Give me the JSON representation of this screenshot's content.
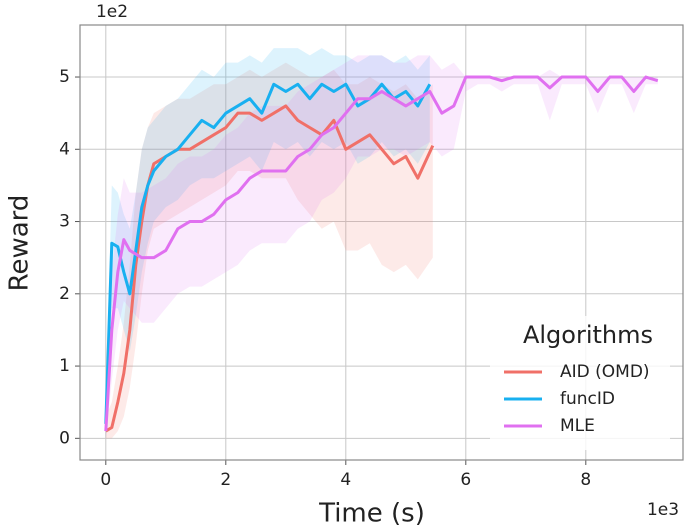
{
  "chart_data": {
    "type": "line",
    "x_label": "Time (s)",
    "y_label": "Reward",
    "x_offset_label": "1e3",
    "y_offset_label": "1e2",
    "legend_title": "Algorithms",
    "legend_position": "lower right",
    "grid": true,
    "xlim": [
      -0.43,
      9.62
    ],
    "xticks": [
      0,
      2,
      4,
      6,
      8
    ],
    "ylim": [
      -0.3,
      5.72
    ],
    "yticks": [
      0,
      1,
      2,
      3,
      4,
      5
    ],
    "series": [
      {
        "name": "AID (OMD)",
        "color": "#f07068",
        "x": [
          0,
          0.1,
          0.2,
          0.3,
          0.4,
          0.5,
          0.6,
          0.7,
          0.8,
          1.0,
          1.2,
          1.4,
          1.6,
          1.8,
          2.0,
          2.2,
          2.4,
          2.6,
          2.8,
          3.0,
          3.2,
          3.4,
          3.6,
          3.8,
          4.0,
          4.2,
          4.4,
          4.6,
          4.8,
          5.0,
          5.2,
          5.45
        ],
        "values": [
          0.1,
          0.15,
          0.5,
          0.9,
          1.5,
          2.4,
          3.0,
          3.5,
          3.8,
          3.9,
          4.0,
          4.0,
          4.1,
          4.2,
          4.3,
          4.5,
          4.5,
          4.4,
          4.5,
          4.6,
          4.4,
          4.3,
          4.2,
          4.4,
          4.0,
          4.1,
          4.2,
          4.0,
          3.8,
          3.9,
          3.6,
          4.05
        ],
        "lower": [
          0,
          0,
          0.1,
          0.3,
          0.7,
          1.3,
          2.0,
          2.6,
          2.9,
          3.0,
          3.1,
          3.2,
          3.3,
          3.4,
          3.5,
          3.7,
          3.7,
          3.6,
          3.6,
          3.6,
          3.3,
          3.1,
          2.9,
          3.0,
          2.6,
          2.6,
          2.7,
          2.4,
          2.3,
          2.4,
          2.2,
          2.5
        ],
        "upper": [
          0.3,
          0.5,
          1.0,
          1.6,
          2.4,
          3.4,
          4.0,
          4.3,
          4.5,
          4.6,
          4.7,
          4.7,
          4.8,
          4.9,
          4.9,
          5.0,
          5.1,
          5.0,
          5.1,
          5.2,
          5.1,
          5.0,
          5.0,
          5.1,
          4.9,
          4.9,
          5.0,
          4.9,
          4.8,
          4.9,
          4.7,
          4.9
        ]
      },
      {
        "name": "funcID",
        "color": "#18b0f0",
        "x": [
          0,
          0.1,
          0.2,
          0.3,
          0.4,
          0.5,
          0.6,
          0.7,
          0.8,
          1.0,
          1.2,
          1.4,
          1.6,
          1.8,
          2.0,
          2.2,
          2.4,
          2.6,
          2.8,
          3.0,
          3.2,
          3.4,
          3.6,
          3.8,
          4.0,
          4.2,
          4.4,
          4.6,
          4.8,
          5.0,
          5.2,
          5.4
        ],
        "values": [
          0.2,
          2.7,
          2.65,
          2.3,
          2.0,
          2.6,
          3.2,
          3.5,
          3.7,
          3.9,
          4.0,
          4.2,
          4.4,
          4.3,
          4.5,
          4.6,
          4.7,
          4.5,
          4.9,
          4.8,
          4.9,
          4.7,
          4.9,
          4.8,
          4.9,
          4.6,
          4.7,
          4.9,
          4.7,
          4.8,
          4.6,
          4.9
        ],
        "lower": [
          0,
          1.8,
          1.8,
          1.5,
          1.2,
          1.7,
          2.3,
          2.7,
          3.0,
          3.2,
          3.3,
          3.5,
          3.6,
          3.6,
          3.7,
          3.8,
          3.9,
          3.7,
          4.1,
          4.0,
          4.1,
          3.9,
          4.1,
          4.0,
          4.1,
          3.8,
          3.9,
          4.1,
          3.9,
          4.0,
          3.8,
          4.1
        ],
        "upper": [
          0.5,
          3.5,
          3.4,
          3.1,
          2.9,
          3.4,
          4.0,
          4.3,
          4.4,
          4.6,
          4.7,
          4.9,
          5.1,
          5.0,
          5.2,
          5.2,
          5.3,
          5.2,
          5.4,
          5.4,
          5.4,
          5.3,
          5.4,
          5.3,
          5.3,
          5.2,
          5.3,
          5.3,
          5.2,
          5.3,
          5.1,
          5.3
        ]
      },
      {
        "name": "MLE",
        "color": "#e070f0",
        "x": [
          0,
          0.1,
          0.2,
          0.3,
          0.4,
          0.6,
          0.8,
          1.0,
          1.2,
          1.4,
          1.6,
          1.8,
          2.0,
          2.2,
          2.4,
          2.6,
          2.8,
          3.0,
          3.2,
          3.4,
          3.6,
          3.8,
          4.0,
          4.2,
          4.4,
          4.6,
          4.8,
          5.0,
          5.2,
          5.4,
          5.6,
          5.8,
          6.0,
          6.2,
          6.4,
          6.6,
          6.8,
          7.0,
          7.2,
          7.4,
          7.6,
          7.8,
          8.0,
          8.2,
          8.4,
          8.6,
          8.8,
          9.0,
          9.2
        ],
        "values": [
          0.1,
          1.5,
          2.3,
          2.75,
          2.6,
          2.5,
          2.5,
          2.6,
          2.9,
          3.0,
          3.0,
          3.1,
          3.3,
          3.4,
          3.6,
          3.7,
          3.7,
          3.7,
          3.9,
          4.0,
          4.2,
          4.3,
          4.5,
          4.7,
          4.7,
          4.8,
          4.7,
          4.6,
          4.7,
          4.8,
          4.5,
          4.6,
          5.0,
          5.0,
          5.0,
          4.95,
          5.0,
          5.0,
          5.0,
          4.85,
          5.0,
          5.0,
          5.0,
          4.8,
          5.0,
          5.0,
          4.8,
          5.0,
          4.95
        ],
        "lower": [
          0,
          0.8,
          1.5,
          1.9,
          1.8,
          1.6,
          1.6,
          1.8,
          2.0,
          2.1,
          2.1,
          2.2,
          2.3,
          2.4,
          2.6,
          2.7,
          2.7,
          2.7,
          2.9,
          3.0,
          3.3,
          3.4,
          3.6,
          3.9,
          3.9,
          4.0,
          4.0,
          3.9,
          4.0,
          4.1,
          3.9,
          4.0,
          4.8,
          4.9,
          4.9,
          4.8,
          4.9,
          4.9,
          4.9,
          4.4,
          4.9,
          4.9,
          4.9,
          4.5,
          4.9,
          4.9,
          4.5,
          4.9,
          4.9
        ],
        "upper": [
          0.3,
          2.3,
          3.1,
          3.6,
          3.4,
          3.4,
          3.5,
          3.6,
          3.8,
          3.9,
          3.9,
          4.0,
          4.2,
          4.3,
          4.5,
          4.6,
          4.6,
          4.6,
          4.8,
          4.9,
          5.0,
          5.1,
          5.2,
          5.3,
          5.3,
          5.3,
          5.2,
          5.2,
          5.3,
          5.3,
          5.1,
          5.2,
          5.0,
          5.0,
          5.0,
          5.0,
          5.0,
          5.0,
          5.0,
          5.1,
          5.0,
          5.0,
          5.0,
          5.0,
          5.0,
          5.0,
          5.0,
          5.0,
          5.0
        ]
      }
    ]
  }
}
